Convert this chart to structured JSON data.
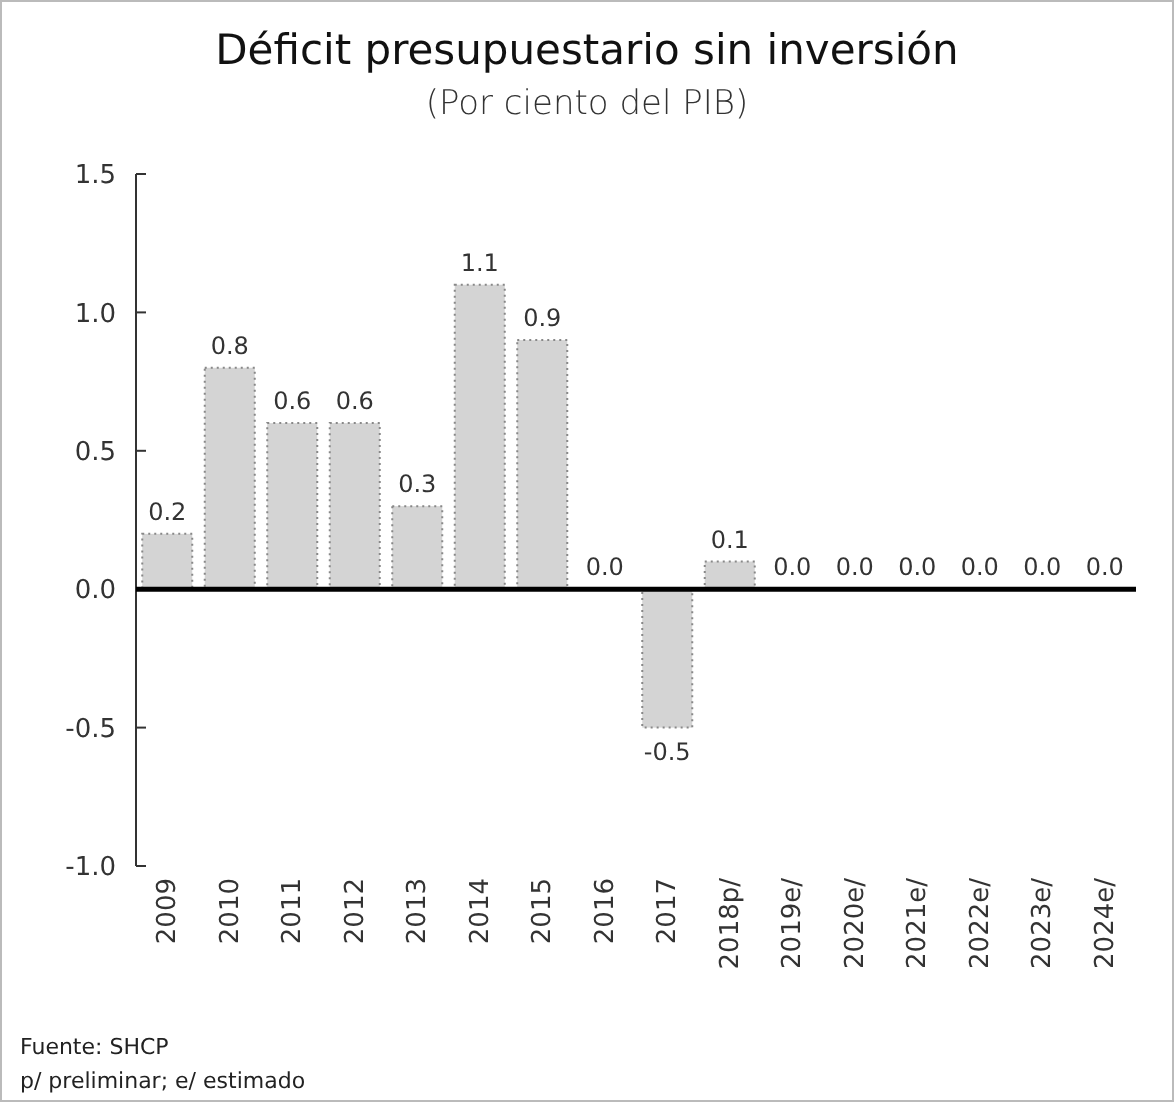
{
  "chart_data": {
    "type": "bar",
    "title": "Déficit presupuestario sin inversión",
    "subtitle": "(Por ciento del PIB)",
    "categories": [
      "2009",
      "2010",
      "2011",
      "2012",
      "2013",
      "2014",
      "2015",
      "2016",
      "2017",
      "2018p/",
      "2019e/",
      "2020e/",
      "2021e/",
      "2022e/",
      "2023e/",
      "2024e/"
    ],
    "values": [
      0.2,
      0.8,
      0.6,
      0.6,
      0.3,
      1.1,
      0.9,
      0.0,
      -0.5,
      0.1,
      0.0,
      0.0,
      0.0,
      0.0,
      0.0,
      0.0
    ],
    "value_labels": [
      "0.2",
      "0.8",
      "0.6",
      "0.6",
      "0.3",
      "1.1",
      "0.9",
      "0.0",
      "-0.5",
      "0.1",
      "0.0",
      "0.0",
      "0.0",
      "0.0",
      "0.0",
      "0.0"
    ],
    "color": "#d4d4d4",
    "ylim": [
      -1.0,
      1.5
    ],
    "yticks": [
      {
        "value": -1.0,
        "label": "-1.0"
      },
      {
        "value": -0.5,
        "label": "-0.5"
      },
      {
        "value": 0.0,
        "label": "0.0"
      },
      {
        "value": 0.5,
        "label": "0.5"
      },
      {
        "value": 1.0,
        "label": "1.0"
      },
      1.5
    ],
    "grid": false,
    "ref_lines": [
      {
        "axis": "y",
        "value": 0,
        "color": "#000000"
      }
    ],
    "annotations": [
      "Fuente: SHCP",
      "p/ preliminar; e/ estimado"
    ]
  }
}
